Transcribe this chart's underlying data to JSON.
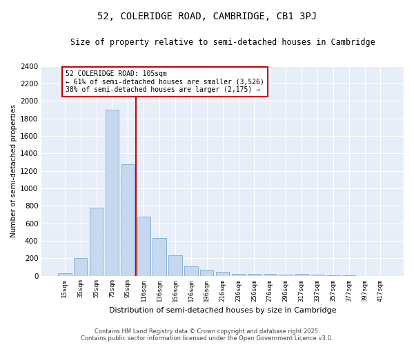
{
  "title": "52, COLERIDGE ROAD, CAMBRIDGE, CB1 3PJ",
  "subtitle": "Size of property relative to semi-detached houses in Cambridge",
  "xlabel": "Distribution of semi-detached houses by size in Cambridge",
  "ylabel": "Number of semi-detached properties",
  "bar_color": "#c5d8f0",
  "bar_edge_color": "#7aabd4",
  "background_color": "#e8eef8",
  "grid_color": "#ffffff",
  "annotation_box_color": "#cc0000",
  "vline_color": "#cc0000",
  "annotation_title": "52 COLERIDGE ROAD: 105sqm",
  "annotation_line1": "← 61% of semi-detached houses are smaller (3,526)",
  "annotation_line2": "38% of semi-detached houses are larger (2,175) →",
  "categories": [
    "15sqm",
    "35sqm",
    "55sqm",
    "75sqm",
    "95sqm",
    "116sqm",
    "136sqm",
    "156sqm",
    "176sqm",
    "196sqm",
    "216sqm",
    "236sqm",
    "256sqm",
    "276sqm",
    "296sqm",
    "317sqm",
    "337sqm",
    "357sqm",
    "377sqm",
    "397sqm",
    "417sqm"
  ],
  "values": [
    25,
    200,
    775,
    1900,
    1275,
    675,
    430,
    230,
    110,
    65,
    45,
    20,
    20,
    20,
    10,
    20,
    10,
    5,
    5,
    0,
    0
  ],
  "ylim": [
    0,
    2400
  ],
  "yticks": [
    0,
    200,
    400,
    600,
    800,
    1000,
    1200,
    1400,
    1600,
    1800,
    2000,
    2200,
    2400
  ],
  "footer_line1": "Contains HM Land Registry data © Crown copyright and database right 2025.",
  "footer_line2": "Contains public sector information licensed under the Open Government Licence v3.0.",
  "figsize": [
    6.0,
    5.0
  ],
  "dpi": 100
}
